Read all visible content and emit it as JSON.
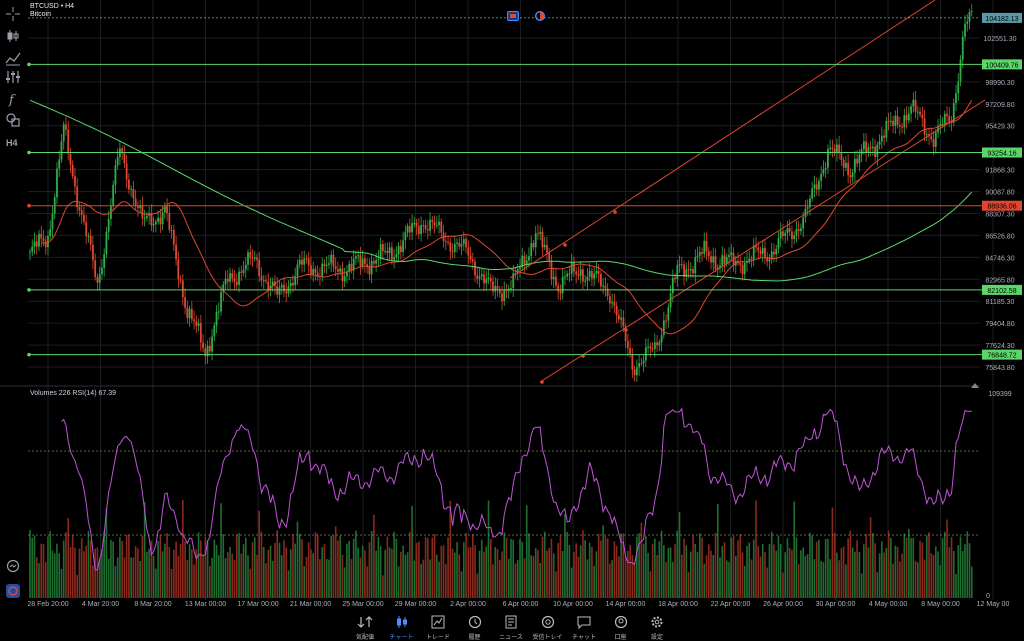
{
  "symbol": {
    "ticker_line": "BTCUSD • H4",
    "name": "Bitcoin"
  },
  "indicator_label": "Volumes 226 RSI(14) 67.39",
  "price_axis": {
    "ticks": [
      "102551.30",
      "98990.30",
      "97209.80",
      "95429.30",
      "91868.30",
      "90087.80",
      "88307.30",
      "86526.80",
      "84746.30",
      "82965.80",
      "81185.30",
      "79404.80",
      "77624.30",
      "75843.80"
    ],
    "current": {
      "label": "104182.13",
      "price": 104182.13
    },
    "levels": [
      {
        "label": "100409.76",
        "price": 100409.76,
        "color": "#5bd76a"
      },
      {
        "label": "93254.16",
        "price": 93254.16,
        "color": "#5bd76a"
      },
      {
        "label": "88936.06",
        "price": 88936.06,
        "color": "#e0472f"
      },
      {
        "label": "82102.58",
        "price": 82102.58,
        "color": "#5bd76a"
      },
      {
        "label": "76848.72",
        "price": 76848.72,
        "color": "#5bd76a"
      }
    ]
  },
  "lower_axis": {
    "max": "109399",
    "min": "0"
  },
  "time_axis": [
    "28 Feb 20:00",
    "4 Mar 20:00",
    "8 Mar 20:00",
    "13 Mar 00:00",
    "17 Mar 00:00",
    "21 Mar 00:00",
    "25 Mar 00:00",
    "29 Mar 00:00",
    "2 Apr 00:00",
    "6 Apr 00:00",
    "10 Apr 00:00",
    "14 Apr 00:00",
    "18 Apr 00:00",
    "22 Apr 00:00",
    "26 Apr 00:00",
    "30 Apr 00:00",
    "4 May 00:00",
    "8 May 00:00",
    "12 May 00"
  ],
  "colors": {
    "up": "#2fae4a",
    "down": "#e0472f",
    "rsi": "#c054d8",
    "ma_fast": "#e0472f",
    "ma_slow": "#5bd76a",
    "accent": "#4b8cff"
  },
  "toolbar": {
    "tools": [
      "crosshair-icon",
      "candles-icon",
      "indicators-icon",
      "sliders-icon",
      "function-icon",
      "shapes-icon",
      "timeframe-icon"
    ],
    "timeframe_label": "H4"
  },
  "nav": [
    {
      "label": "気配値",
      "icon": "quotes-icon",
      "active": false
    },
    {
      "label": "チャート",
      "icon": "chart-icon",
      "active": true
    },
    {
      "label": "トレード",
      "icon": "trade-icon",
      "active": false
    },
    {
      "label": "履歴",
      "icon": "history-icon",
      "active": false
    },
    {
      "label": "ニュース",
      "icon": "news-icon",
      "active": false
    },
    {
      "label": "受信トレイ",
      "icon": "mailbox-icon",
      "active": false
    },
    {
      "label": "チャット",
      "icon": "chat-icon",
      "active": false
    },
    {
      "label": "口座",
      "icon": "account-icon",
      "active": false
    },
    {
      "label": "設定",
      "icon": "settings-icon",
      "active": false
    }
  ]
}
